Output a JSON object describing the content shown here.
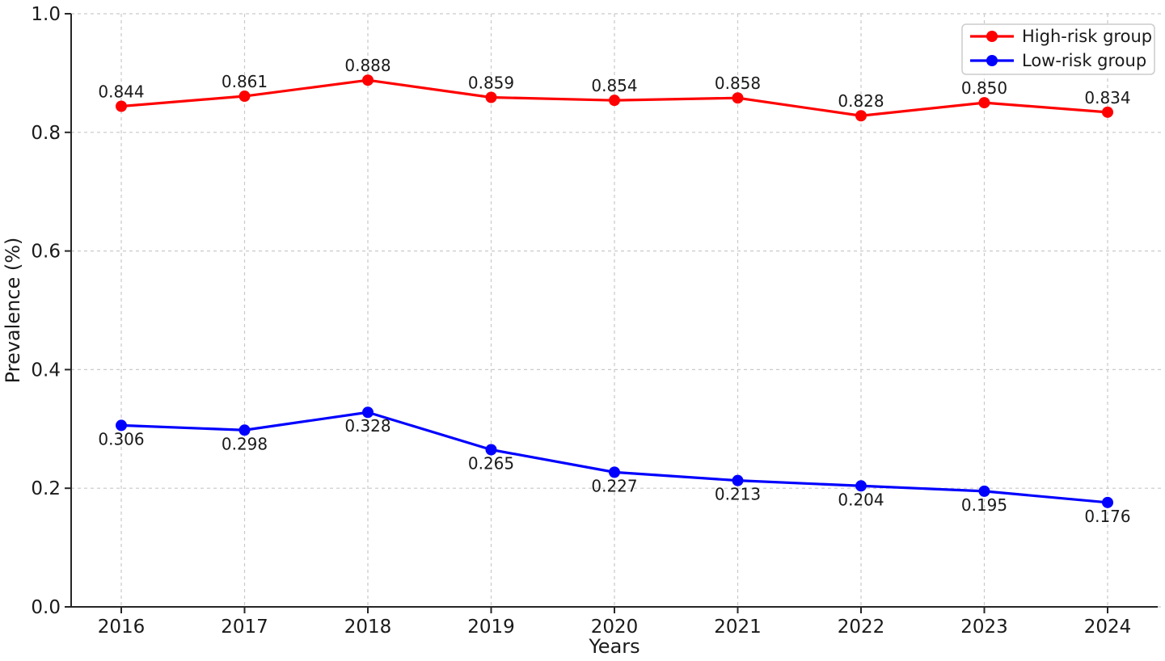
{
  "chart_data": {
    "type": "line",
    "title": "",
    "xlabel": "Years",
    "ylabel": "Prevalence (%)",
    "categories": [
      "2016",
      "2017",
      "2018",
      "2019",
      "2020",
      "2021",
      "2022",
      "2023",
      "2024"
    ],
    "series": [
      {
        "name": "High-risk group",
        "color": "#ff0000",
        "values": [
          0.844,
          0.861,
          0.888,
          0.859,
          0.854,
          0.858,
          0.828,
          0.85,
          0.834
        ],
        "value_labels": [
          "0.844",
          "0.861",
          "0.888",
          "0.859",
          "0.854",
          "0.858",
          "0.828",
          "0.850",
          "0.834"
        ],
        "value_label_position": "above"
      },
      {
        "name": "Low-risk group",
        "color": "#0000ff",
        "values": [
          0.306,
          0.298,
          0.328,
          0.265,
          0.227,
          0.213,
          0.204,
          0.195,
          0.176
        ],
        "value_labels": [
          "0.306",
          "0.298",
          "0.328",
          "0.265",
          "0.227",
          "0.213",
          "0.204",
          "0.195",
          "0.176"
        ],
        "value_label_position": "below"
      }
    ],
    "ylim": [
      0.0,
      1.0
    ],
    "ytick_labels": [
      "0.0",
      "0.2",
      "0.4",
      "0.6",
      "0.8",
      "1.0"
    ],
    "ytick_values": [
      0.0,
      0.2,
      0.4,
      0.6,
      0.8,
      1.0
    ],
    "grid": true,
    "grid_style": "dashed",
    "legend": {
      "position": "upper right",
      "entries": [
        "High-risk group",
        "Low-risk group"
      ]
    },
    "colors": {
      "grid": "#c9c9c9",
      "axis": "#262626",
      "text": "#1a1a1a",
      "background": "#ffffff",
      "legend_border": "#cccccc",
      "legend_background": "#ffffff"
    }
  }
}
